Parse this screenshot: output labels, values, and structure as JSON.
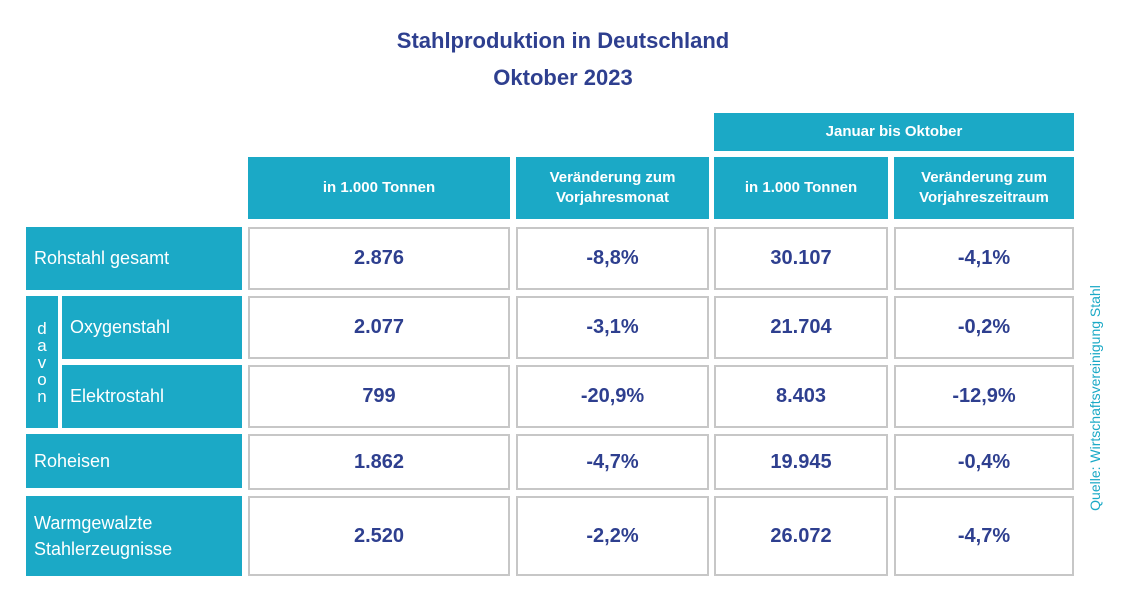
{
  "title": "Stahlproduktion in Deutschland",
  "subtitle": "Oktober 2023",
  "group_header": "Januar bis Oktober",
  "columns": [
    "in 1.000 Tonnen",
    "Veränderung zum\nVorjahresmonat",
    "in 1.000 Tonnen",
    "Veränderung zum\nVorjahreszeitraum"
  ],
  "davon_letters": [
    "d",
    "a",
    "v",
    "o",
    "n"
  ],
  "rows": [
    {
      "label": "Rohstahl gesamt",
      "values": [
        "2.876",
        "-8,8%",
        "30.107",
        "-4,1%"
      ]
    },
    {
      "label": "Oxygenstahl",
      "values": [
        "2.077",
        "-3,1%",
        "21.704",
        "-0,2%"
      ]
    },
    {
      "label": "Elektrostahl",
      "values": [
        "799",
        "-20,9%",
        "8.403",
        "-12,9%"
      ]
    },
    {
      "label": "Roheisen",
      "values": [
        "1.862",
        "-4,7%",
        "19.945",
        "-0,4%"
      ]
    },
    {
      "label": "Warmgewalzte\nStahlerzeugnisse",
      "values": [
        "2.520",
        "-2,2%",
        "26.072",
        "-4,7%"
      ]
    }
  ],
  "source": "Quelle: Wirtschaftsvereinigung Stahl",
  "accent_color": "#1ba9c6",
  "text_color": "#2e3f8f"
}
